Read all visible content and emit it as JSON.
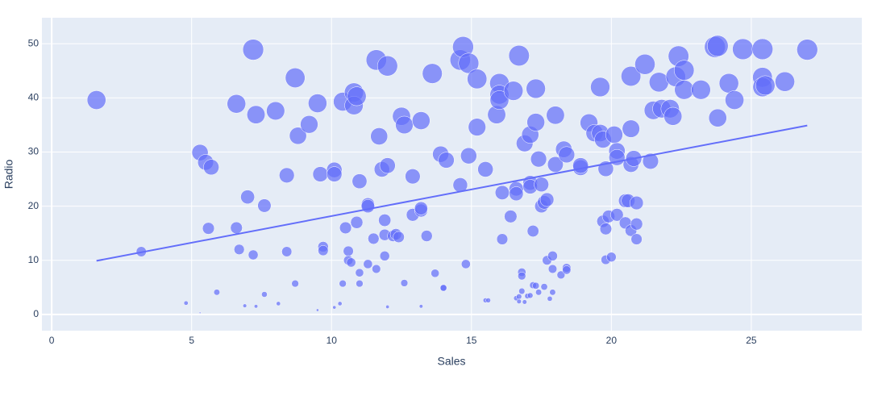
{
  "chart_data": {
    "type": "scatter",
    "x_label": "Sales",
    "y_label": "Radio",
    "xlim": [
      -0.35,
      28.95
    ],
    "ylim": [
      -3.0,
      54.8
    ],
    "xticks": [
      0,
      5,
      10,
      15,
      20,
      25
    ],
    "yticks": [
      0,
      10,
      20,
      30,
      40,
      50
    ],
    "grid": true,
    "color": "#636efa",
    "x": [
      1.6,
      3.2,
      4.8,
      5.3,
      5.3,
      5.5,
      5.6,
      5.7,
      5.9,
      6.6,
      6.6,
      6.7,
      6.9,
      7.0,
      7.2,
      7.2,
      7.3,
      7.3,
      7.6,
      7.6,
      8.0,
      8.1,
      8.4,
      8.4,
      8.7,
      8.7,
      8.8,
      9.2,
      9.5,
      9.5,
      9.6,
      9.7,
      9.7,
      10.1,
      10.1,
      10.1,
      10.3,
      10.4,
      10.4,
      10.5,
      10.6,
      10.6,
      10.7,
      10.8,
      10.8,
      10.9,
      10.9,
      11.0,
      11.0,
      11.0,
      11.3,
      11.3,
      11.3,
      11.5,
      11.6,
      11.6,
      11.7,
      11.8,
      11.9,
      11.9,
      11.9,
      12.0,
      12.0,
      12.0,
      12.2,
      12.3,
      12.4,
      12.5,
      12.6,
      12.6,
      12.9,
      12.9,
      13.2,
      13.2,
      13.2,
      13.2,
      13.4,
      13.6,
      13.7,
      13.9,
      14.0,
      14.0,
      14.1,
      14.6,
      14.6,
      14.7,
      14.8,
      14.9,
      14.9,
      15.2,
      15.2,
      15.5,
      15.5,
      15.6,
      15.9,
      16.0,
      16.0,
      16.0,
      16.1,
      16.1,
      16.4,
      16.5,
      16.6,
      16.6,
      16.6,
      16.7,
      16.7,
      16.7,
      16.8,
      16.8,
      16.8,
      16.9,
      16.9,
      17.0,
      17.1,
      17.1,
      17.1,
      17.1,
      17.2,
      17.2,
      17.3,
      17.3,
      17.3,
      17.4,
      17.4,
      17.5,
      17.5,
      17.6,
      17.6,
      17.7,
      17.7,
      17.8,
      17.9,
      17.9,
      17.9,
      18.0,
      18.0,
      18.2,
      18.3,
      18.4,
      18.4,
      18.4,
      18.9,
      18.9,
      19.2,
      19.4,
      19.6,
      19.6,
      19.7,
      19.7,
      19.8,
      19.8,
      19.8,
      19.9,
      20.0,
      20.1,
      20.2,
      20.2,
      20.2,
      20.5,
      20.5,
      20.6,
      20.7,
      20.7,
      20.7,
      20.7,
      20.8,
      20.9,
      20.9,
      20.9,
      21.2,
      21.4,
      21.5,
      21.7,
      21.8,
      22.1,
      22.2,
      22.3,
      22.4,
      22.6,
      22.6,
      23.2,
      23.7,
      23.8,
      23.8,
      24.2,
      24.4,
      24.7,
      25.4,
      25.4,
      25.4,
      25.5,
      26.2,
      27.0
    ],
    "values": [
      39.6,
      11.6,
      2.1,
      0.3,
      29.9,
      28.1,
      15.9,
      27.2,
      4.1,
      38.9,
      16.0,
      12.0,
      1.6,
      21.7,
      48.9,
      11.0,
      1.5,
      36.9,
      20.1,
      3.7,
      37.6,
      2.0,
      11.6,
      25.7,
      43.7,
      5.7,
      33.0,
      35.1,
      39.0,
      0.8,
      25.9,
      12.5,
      11.8,
      26.7,
      25.9,
      1.3,
      2.0,
      39.3,
      5.7,
      16.0,
      11.7,
      10.0,
      9.6,
      41.0,
      38.6,
      40.3,
      17.0,
      24.6,
      7.7,
      5.7,
      20.3,
      9.3,
      20.0,
      14.0,
      8.4,
      47.0,
      32.9,
      26.8,
      17.4,
      10.8,
      14.7,
      1.4,
      27.5,
      45.9,
      14.5,
      14.8,
      14.3,
      36.6,
      35.0,
      5.8,
      25.5,
      18.4,
      19.2,
      19.6,
      35.8,
      1.5,
      14.5,
      44.5,
      7.6,
      29.6,
      4.9,
      4.9,
      28.5,
      47.0,
      23.9,
      49.4,
      9.3,
      46.4,
      29.3,
      43.5,
      34.6,
      26.8,
      2.6,
      2.6,
      36.9,
      42.7,
      40.6,
      39.6,
      22.5,
      13.9,
      18.1,
      41.3,
      3.0,
      23.2,
      22.3,
      3.3,
      2.4,
      47.8,
      4.3,
      7.8,
      7.1,
      2.3,
      31.6,
      3.4,
      3.5,
      24.3,
      33.2,
      23.6,
      15.4,
      5.4,
      41.7,
      5.3,
      35.5,
      28.7,
      4.1,
      20.0,
      24.0,
      20.7,
      5.1,
      21.2,
      10.0,
      2.9,
      4.1,
      8.4,
      10.8,
      36.8,
      27.7,
      7.3,
      30.5,
      29.5,
      8.6,
      8.2,
      27.1,
      27.5,
      35.4,
      33.5,
      33.5,
      42.0,
      32.3,
      17.2,
      15.8,
      26.9,
      10.1,
      18.1,
      10.6,
      33.2,
      30.2,
      29.0,
      18.4,
      21.0,
      16.9,
      21.0,
      44.0,
      34.3,
      27.7,
      15.5,
      28.8,
      20.6,
      16.7,
      13.9,
      46.2,
      28.3,
      37.7,
      42.9,
      38.0,
      38.0,
      36.6,
      43.9,
      47.7,
      45.1,
      41.5,
      41.5,
      49.4,
      49.6,
      36.3,
      42.7,
      39.6,
      49.0,
      49.0,
      43.8,
      42.0,
      42.3,
      43.0,
      48.9
    ],
    "trendline": {
      "color": "#636efa",
      "x": [
        1.6,
        27.0
      ],
      "values": [
        9.9,
        34.9
      ]
    }
  }
}
